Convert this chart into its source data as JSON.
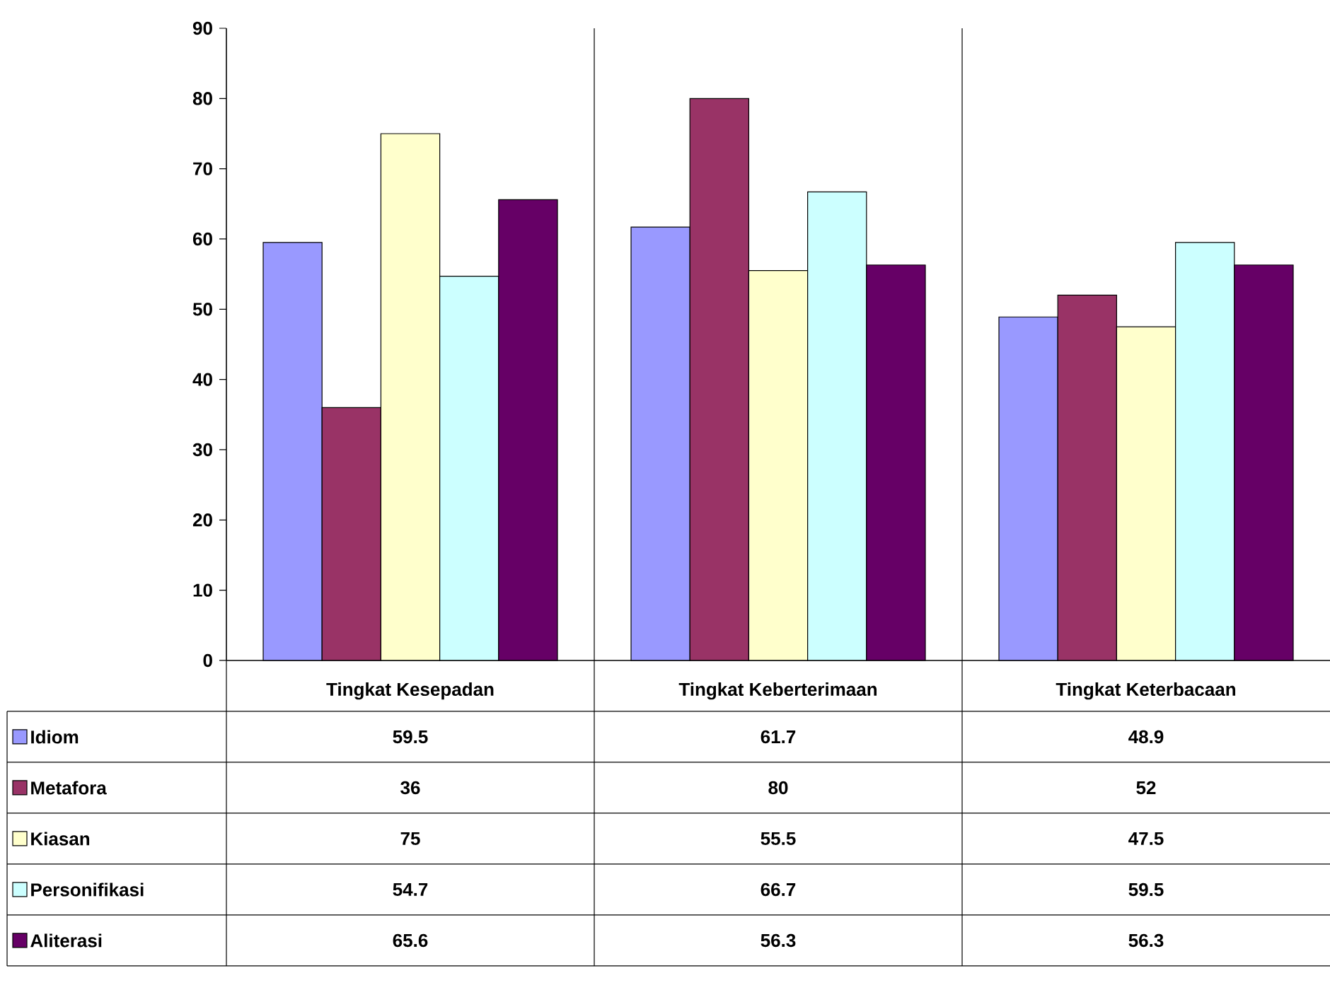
{
  "chart_data": {
    "type": "bar",
    "categories": [
      "Tingkat Kesepadan",
      "Tingkat Keberterimaan",
      "Tingkat Keterbacaan"
    ],
    "series": [
      {
        "name": "Idiom",
        "color": "#9999ff",
        "values": [
          59.5,
          61.7,
          48.9
        ]
      },
      {
        "name": "Metafora",
        "color": "#993366",
        "values": [
          36,
          80,
          52
        ]
      },
      {
        "name": "Kiasan",
        "color": "#ffffcc",
        "values": [
          75,
          55.5,
          47.5
        ]
      },
      {
        "name": "Personifikasi",
        "color": "#ccffff",
        "values": [
          54.7,
          66.7,
          59.5
        ]
      },
      {
        "name": "Aliterasi",
        "color": "#660066",
        "values": [
          65.6,
          56.3,
          56.3
        ]
      }
    ],
    "ylim": [
      0,
      90
    ],
    "yticks": [
      0,
      10,
      20,
      30,
      40,
      50,
      60,
      70,
      80,
      90
    ],
    "grid": "x",
    "legend": "bottom",
    "data_labels": true
  }
}
